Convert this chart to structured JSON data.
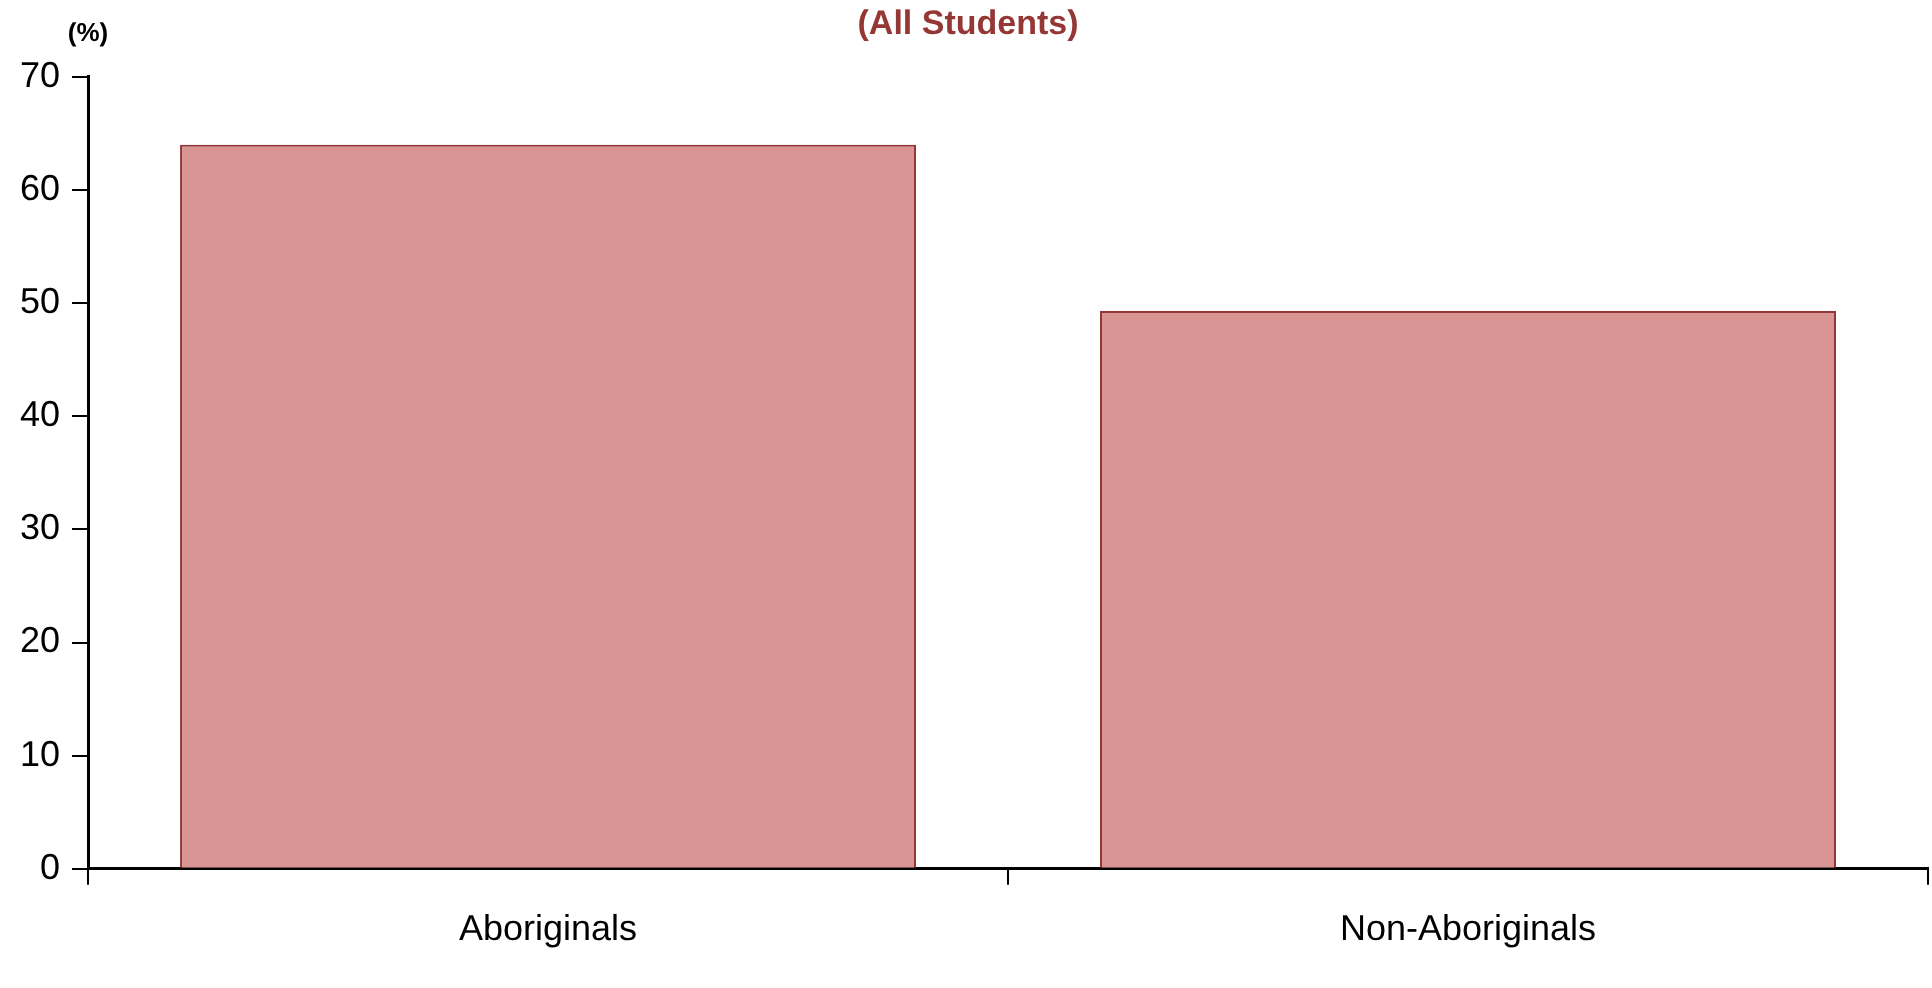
{
  "chart_data": {
    "type": "bar",
    "title": "(All Students)",
    "ylabel": "(%)",
    "categories": [
      "Aboriginals",
      "Non-Aboriginals"
    ],
    "values": [
      64,
      49.3
    ],
    "color": "#d99594",
    "ylim": [
      0,
      70
    ],
    "yticks": [
      0,
      10,
      20,
      30,
      40,
      50,
      60,
      70
    ],
    "grid": false,
    "legend": false
  }
}
